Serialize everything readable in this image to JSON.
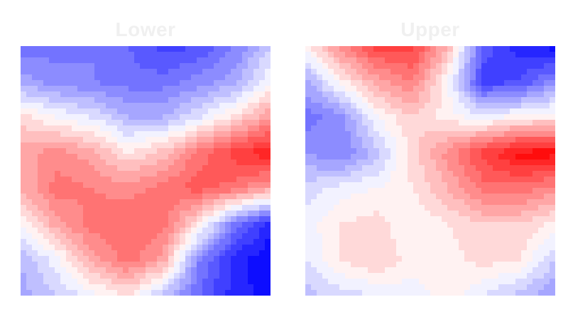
{
  "chart_data": [
    {
      "type": "heatmap",
      "title": "Lower",
      "subtitle": "",
      "xlabel": "",
      "ylabel": "",
      "colormap": "bwr",
      "vmin": -1,
      "vmax": 1,
      "grid": false,
      "legend": "none",
      "values": [
        [
          -0.55,
          -0.55,
          -0.5,
          -0.6,
          -0.75,
          -0.7,
          -0.5,
          -0.2
        ],
        [
          -0.35,
          -0.45,
          -0.5,
          -0.55,
          -0.55,
          -0.45,
          -0.35,
          0.0
        ],
        [
          0.15,
          0.0,
          -0.1,
          -0.3,
          -0.3,
          -0.1,
          0.15,
          0.4
        ],
        [
          0.35,
          0.45,
          0.35,
          0.1,
          0.25,
          0.55,
          0.75,
          0.9
        ],
        [
          0.3,
          0.55,
          0.5,
          0.45,
          0.55,
          0.65,
          0.55,
          0.35
        ],
        [
          0.0,
          0.35,
          0.55,
          0.6,
          0.55,
          0.1,
          -0.55,
          -0.85
        ],
        [
          -0.3,
          -0.05,
          0.35,
          0.55,
          0.35,
          -0.5,
          -0.85,
          -1.0
        ],
        [
          -0.35,
          -0.2,
          -0.05,
          0.1,
          -0.25,
          -0.6,
          -0.85,
          -0.95
        ]
      ]
    },
    {
      "type": "heatmap",
      "title": "Upper",
      "subtitle": "",
      "xlabel": "",
      "ylabel": "",
      "colormap": "bwr",
      "vmin": -1,
      "vmax": 1,
      "grid": false,
      "legend": "none",
      "values": [
        [
          0.05,
          0.45,
          0.75,
          0.75,
          0.3,
          -0.65,
          -0.85,
          -0.95
        ],
        [
          -0.35,
          0.05,
          0.35,
          0.5,
          0.0,
          -0.75,
          -0.7,
          -0.45
        ],
        [
          -0.55,
          -0.45,
          0.0,
          0.2,
          0.05,
          -0.05,
          0.05,
          0.1
        ],
        [
          -0.4,
          -0.5,
          -0.25,
          0.15,
          0.45,
          0.75,
          0.95,
          0.95
        ],
        [
          -0.15,
          -0.05,
          0.0,
          0.1,
          0.3,
          0.55,
          0.55,
          0.45
        ],
        [
          -0.05,
          0.1,
          0.15,
          0.0,
          0.1,
          0.2,
          0.2,
          0.05
        ],
        [
          -0.1,
          0.1,
          0.2,
          0.05,
          0.05,
          0.15,
          0.1,
          -0.2
        ],
        [
          -0.25,
          -0.15,
          -0.1,
          -0.05,
          0.05,
          -0.1,
          -0.25,
          -0.4
        ]
      ]
    }
  ]
}
